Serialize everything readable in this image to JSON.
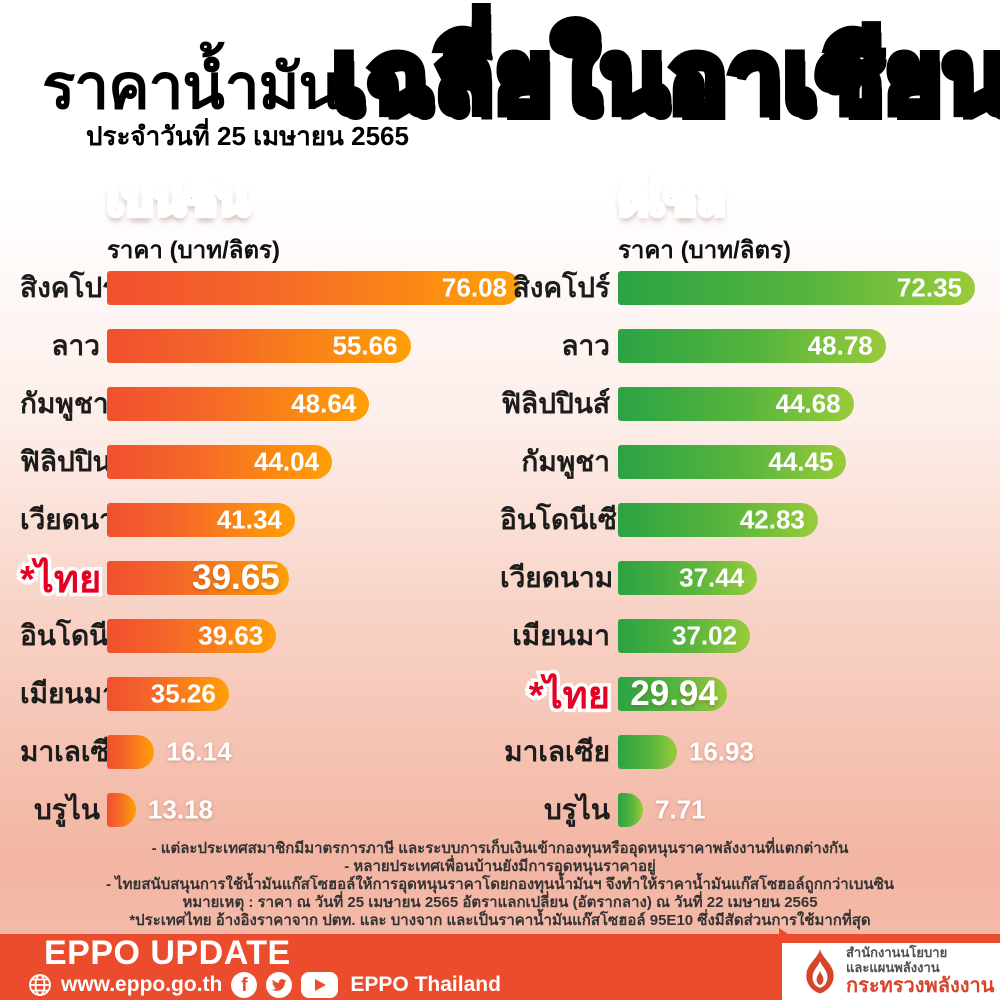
{
  "header": {
    "title_black": "ราคาน้ำมัน",
    "date_line": "ประจำวันที่ 25 เมษายน 2565",
    "title_orange": "เฉลี่ยในอาเซียน"
  },
  "chart_data": [
    {
      "type": "bar",
      "orientation": "horizontal",
      "title": "เบนซิน",
      "subtitle": "ราคา (บาท/ลิตร)",
      "unit": "บาท/ลิตร",
      "categories": [
        "สิงคโปร์",
        "ลาว",
        "กัมพูชา",
        "ฟิลิปปินส์",
        "เวียดนาม",
        "*ไทย",
        "อินโดนีเซีย",
        "เมียนมา",
        "มาเลเซีย",
        "บรูไน"
      ],
      "values": [
        76.08,
        55.66,
        48.64,
        44.04,
        41.34,
        39.65,
        39.63,
        35.26,
        16.14,
        13.18
      ],
      "highlight_index": 5,
      "bar_width_pct": [
        100,
        73.5,
        63.5,
        54.5,
        45.5,
        44,
        41,
        29.5,
        11.5,
        7
      ],
      "value_outside": [
        false,
        false,
        false,
        false,
        false,
        false,
        false,
        false,
        true,
        true
      ],
      "bar_color_from": "#f1502e",
      "bar_color_to": "#ffa005",
      "xlim": [
        0,
        76.08
      ],
      "grid": false,
      "legend": "none"
    },
    {
      "type": "bar",
      "orientation": "horizontal",
      "title": "ดีเซล",
      "subtitle": "ราคา (บาท/ลิตร)",
      "unit": "บาท/ลิตร",
      "categories": [
        "สิงคโปร์",
        "ลาว",
        "ฟิลิปปินส์",
        "กัมพูชา",
        "อินโดนีเซีย",
        "เวียดนาม",
        "เมียนมา",
        "*ไทย",
        "มาเลเซีย",
        "บรูไน"
      ],
      "values": [
        72.35,
        48.78,
        44.68,
        44.45,
        42.83,
        37.44,
        37.02,
        29.94,
        16.93,
        7.71
      ],
      "highlight_index": 7,
      "bar_width_pct": [
        100,
        75,
        66,
        64,
        56,
        39,
        37,
        30.5,
        16.5,
        7
      ],
      "value_outside": [
        false,
        false,
        false,
        false,
        false,
        false,
        false,
        false,
        true,
        true
      ],
      "bar_color_from": "#2ba343",
      "bar_color_to": "#9acb3a",
      "xlim": [
        0,
        72.35
      ],
      "grid": false,
      "legend": "none"
    }
  ],
  "notes": [
    "- แต่ละประเทศสมาชิกมีมาตรการภาษี และระบบการเก็บเงินเข้ากองทุนหรืออุดหนุนราคาพลังงานที่แตกต่างกัน",
    "- หลายประเทศเพื่อนบ้านยังมีการอุดหนุนราคาอยู่",
    "- ไทยสนับสนุนการใช้น้ำมันแก๊สโซฮอล์ให้การอุดหนุนราคาโดยกองทุนน้ำมันฯ จึงทำให้ราคาน้ำมันแก๊สโซฮอล์ถูกกว่าเบนซิน",
    "หมายเหตุ : ราคา ณ วันที่ 25 เมษายน 2565 อัตราแลกเปลี่ยน (อัตรากลาง) ณ วันที่ 22 เมษายน 2565",
    "*ประเทศไทย อ้างอิงราคาจาก ปตท. และ บางจาก และเป็นราคาน้ำมันแก๊สโซฮอล์ 95E10 ซึ่งมีสัดส่วนการใช้มากที่สุด"
  ],
  "footer": {
    "brand": "EPPO UPDATE",
    "website": "www.eppo.go.th",
    "facebook_glyph": "f",
    "social_name": "EPPO Thailand",
    "icons": [
      "globe-icon",
      "facebook-icon",
      "twitter-icon",
      "youtube-icon"
    ],
    "bar_color": "#ea4c2d"
  },
  "agency": {
    "line1": "สำนักงานนโยบาย",
    "line2": "และแผนพลังงาน",
    "line3": "กระทรวงพลังงาน",
    "logo": "flame-icon",
    "logo_color": "#d6452b"
  },
  "colors": {
    "highlight_red": "#e60023",
    "title_gradient_top": "#ffb640",
    "title_gradient_bottom": "#ef512b",
    "background_bottom": "#f4b5a4"
  }
}
